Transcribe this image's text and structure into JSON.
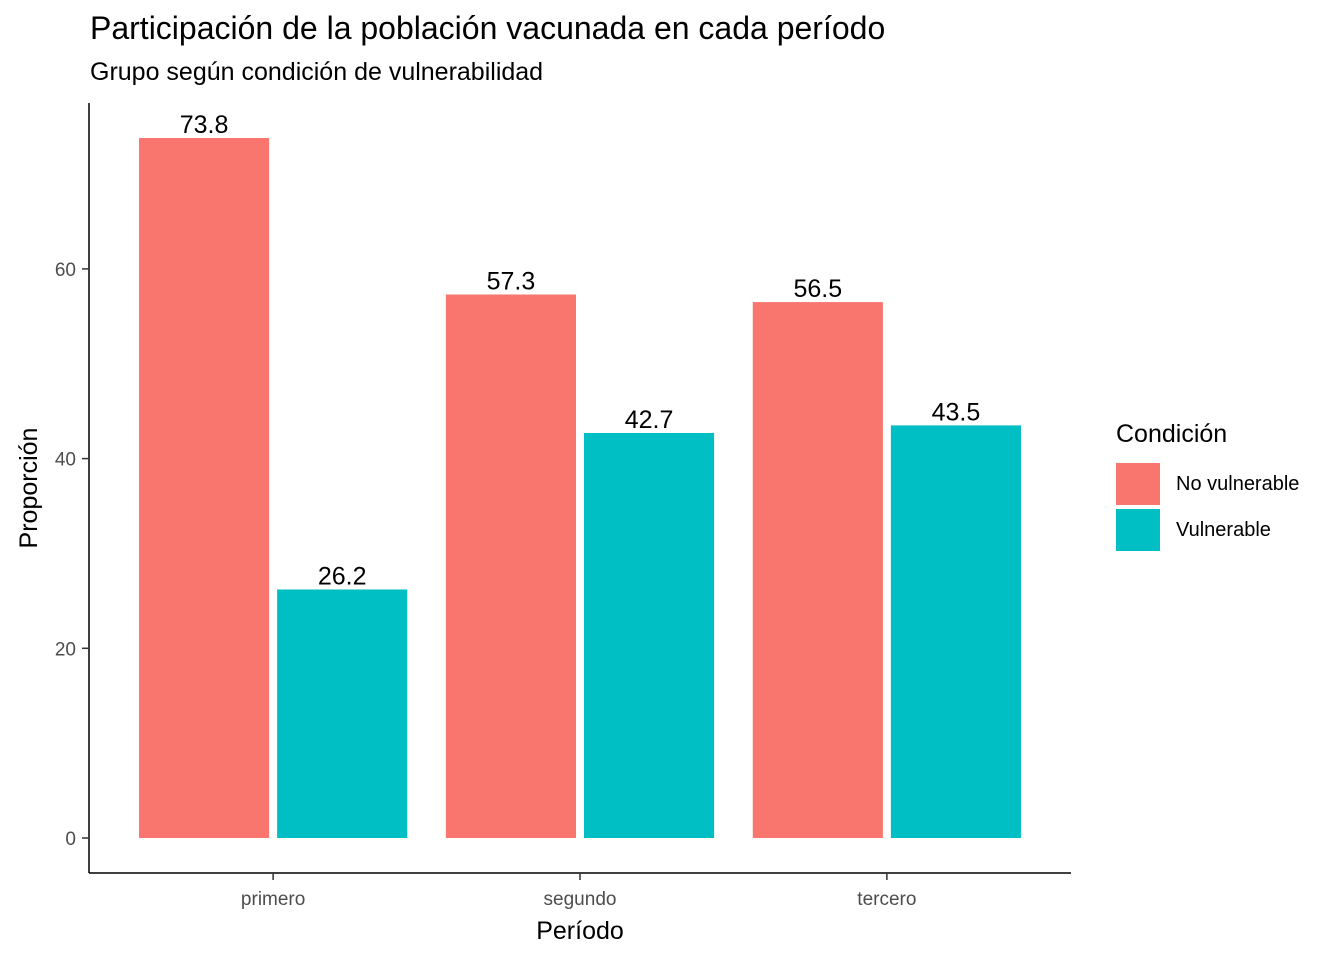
{
  "chart_data": {
    "type": "bar",
    "title": "Participación de la población vacunada en cada período",
    "subtitle": "Grupo según condición de vulnerabilidad",
    "xlabel": "Período",
    "ylabel": "Proporción",
    "categories": [
      "primero",
      "segundo",
      "tercero"
    ],
    "series": [
      {
        "name": "No vulnerable",
        "color": "#F8766D",
        "values": [
          73.8,
          57.3,
          56.5
        ]
      },
      {
        "name": "Vulnerable",
        "color": "#00BFC4",
        "values": [
          26.2,
          42.7,
          43.5
        ]
      }
    ],
    "yticks": [
      0,
      20,
      40,
      60
    ],
    "ylim": [
      -3.69,
      77.49
    ],
    "legend": {
      "title": "Condición",
      "position": "right"
    },
    "grid": false
  }
}
